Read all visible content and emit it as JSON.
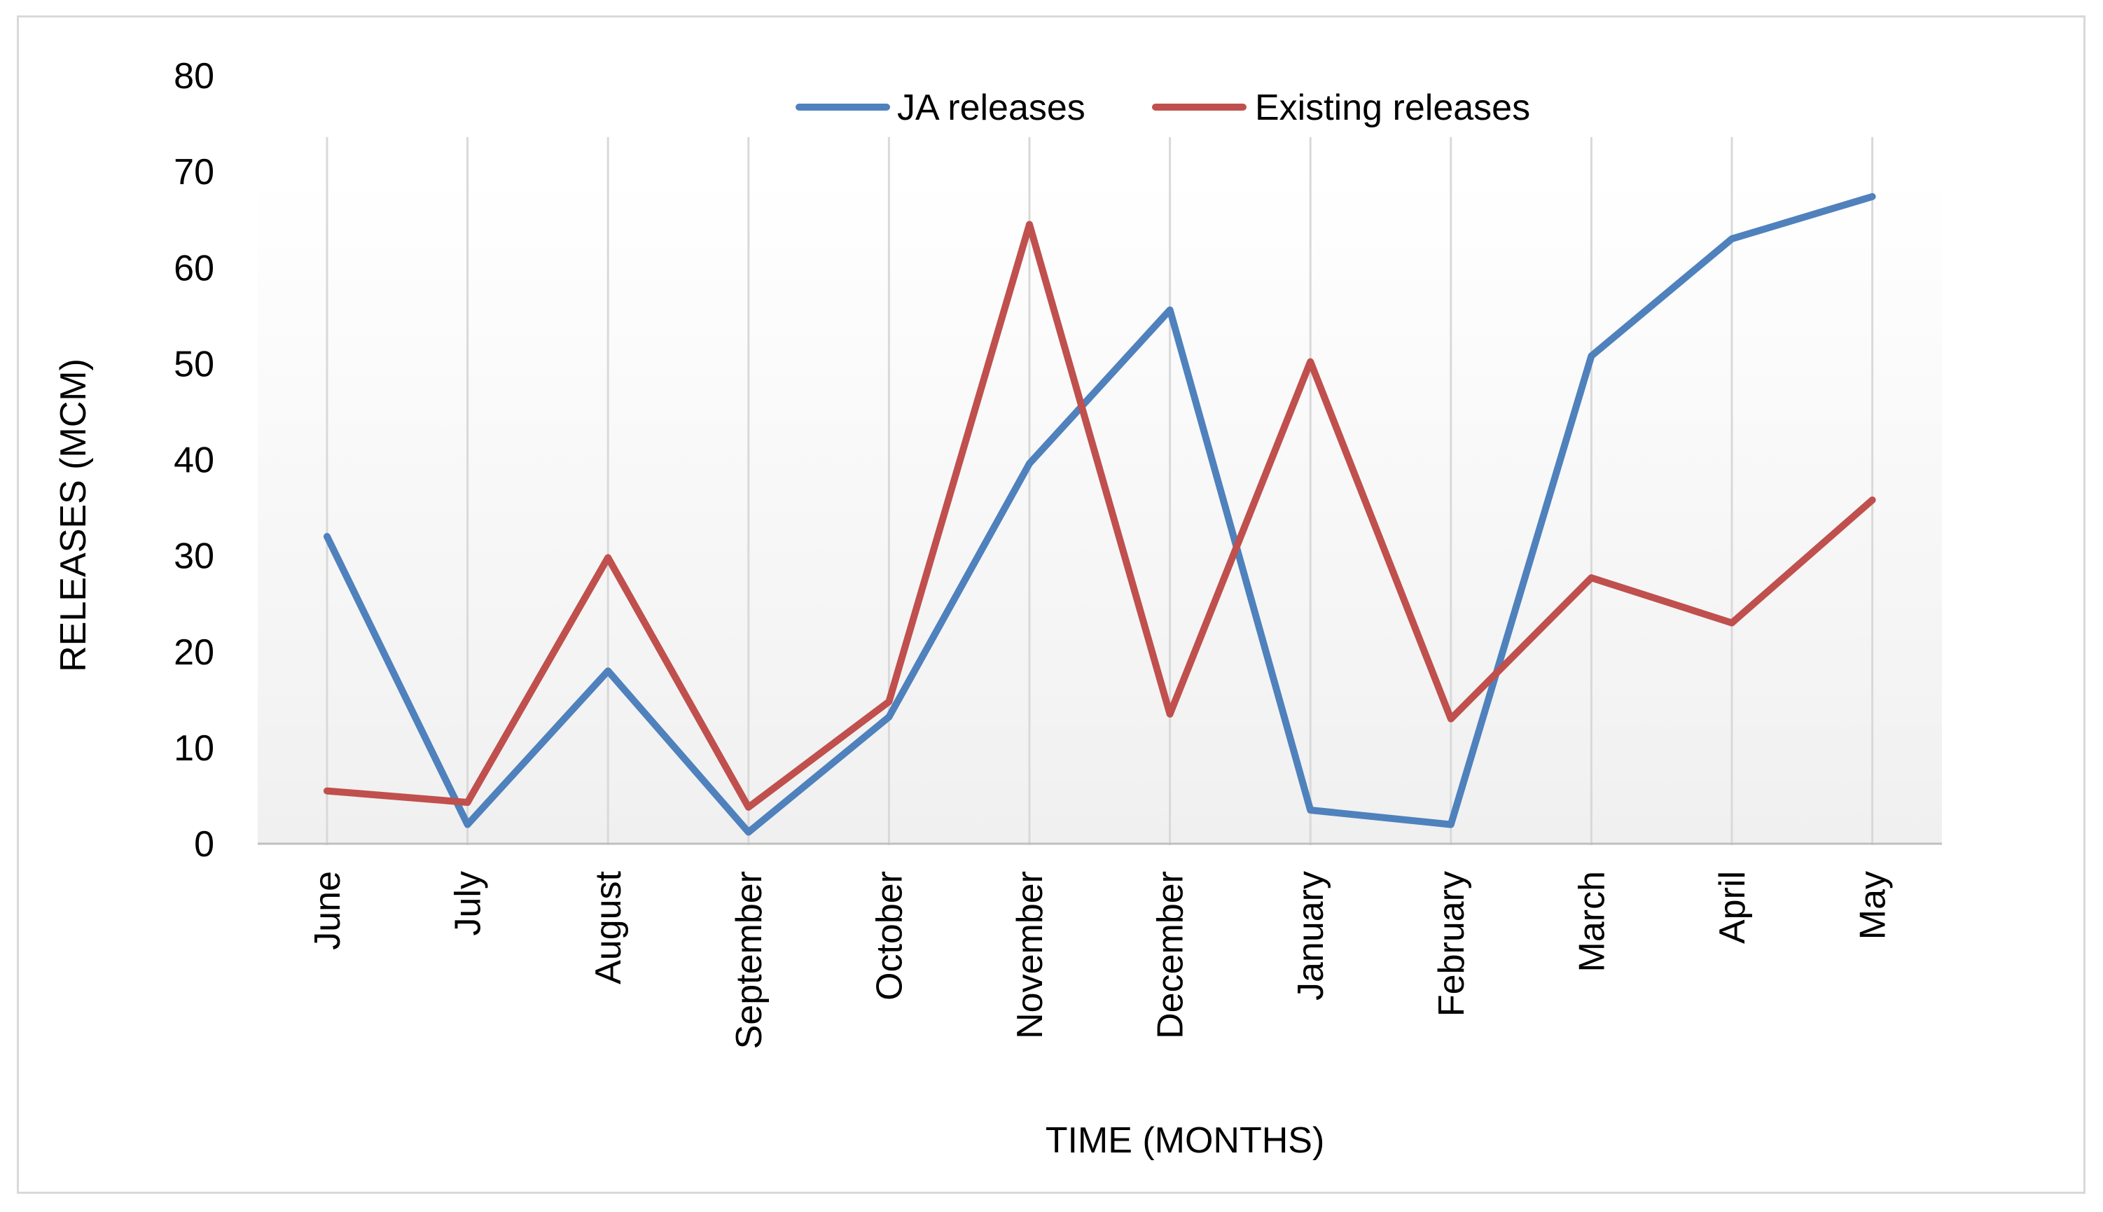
{
  "chart_data": {
    "type": "line",
    "title": "",
    "xlabel": "TIME (MONTHS)",
    "ylabel": "RELEASES (MCM)",
    "ylim": [
      0,
      80
    ],
    "yticks": [
      0,
      10,
      20,
      30,
      40,
      50,
      60,
      70,
      80
    ],
    "grid": "vertical",
    "legend_position": "top",
    "categories": [
      "June",
      "July",
      "August",
      "September",
      "October",
      "November",
      "December",
      "January",
      "February",
      "March",
      "April",
      "May"
    ],
    "series": [
      {
        "name": "JA releases",
        "color": "#4f81bd",
        "values": [
          32,
          2,
          18,
          1.2,
          13.2,
          39.6,
          55.6,
          3.5,
          2,
          50.8,
          63,
          67.4
        ]
      },
      {
        "name": "Existing releases",
        "color": "#c0504d",
        "values": [
          5.5,
          4.3,
          29.8,
          3.8,
          14.8,
          64.5,
          13.5,
          50.2,
          13,
          27.7,
          23,
          35.8
        ]
      }
    ]
  }
}
